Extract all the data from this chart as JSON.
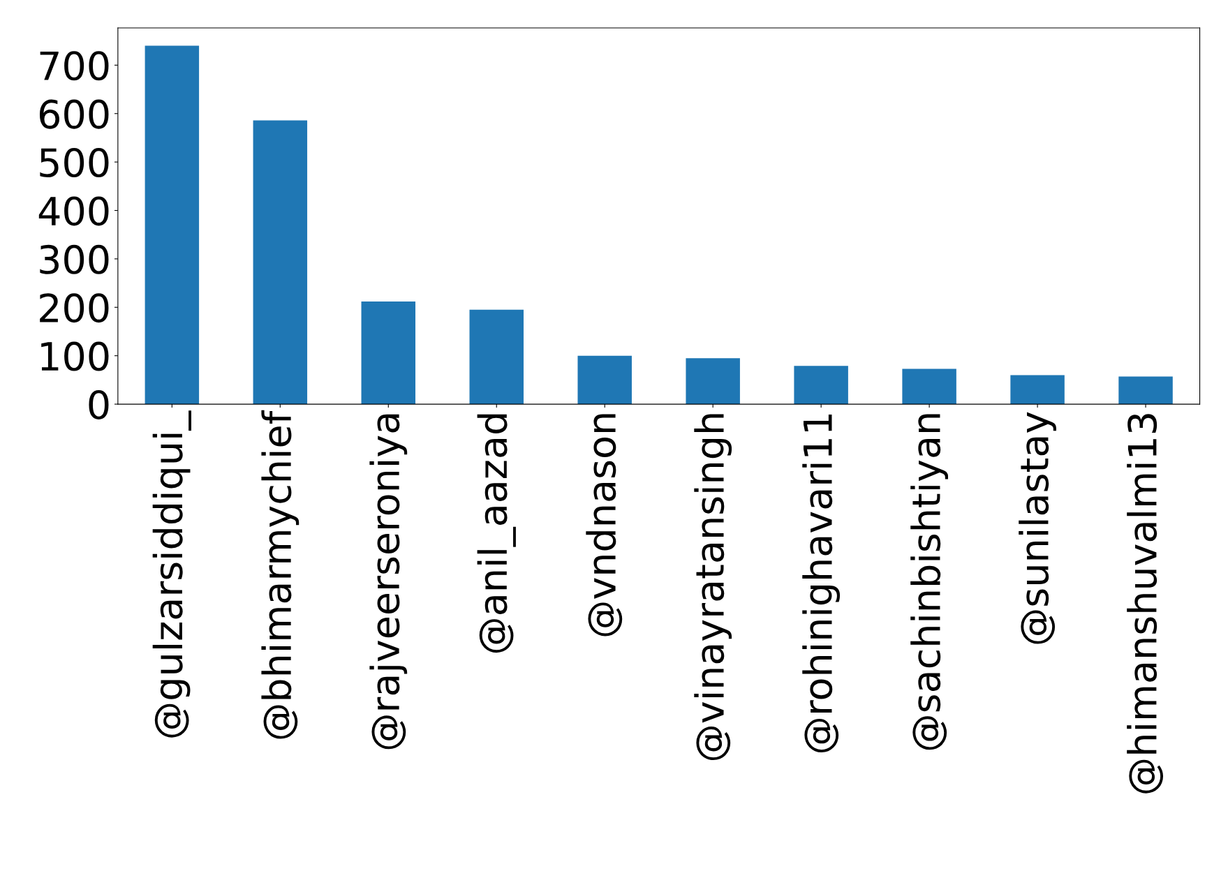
{
  "chart_data": {
    "type": "bar",
    "categories": [
      "@gulzarsiddiqui_",
      "@bhimarmychief",
      "@rajveerseroniya",
      "@anil_aazad",
      "@vndnason",
      "@vinayratansingh",
      "@rohinighavari11",
      "@sachinbishtiyan",
      "@sunilastay",
      "@himanshuvalmi13"
    ],
    "values": [
      740,
      586,
      212,
      195,
      100,
      95,
      79,
      73,
      60,
      57
    ],
    "color": "#1f77b4",
    "ylim": [
      0,
      777
    ],
    "yticks": [
      0,
      100,
      200,
      300,
      400,
      500,
      600,
      700
    ],
    "grid": false,
    "legend": false
  }
}
